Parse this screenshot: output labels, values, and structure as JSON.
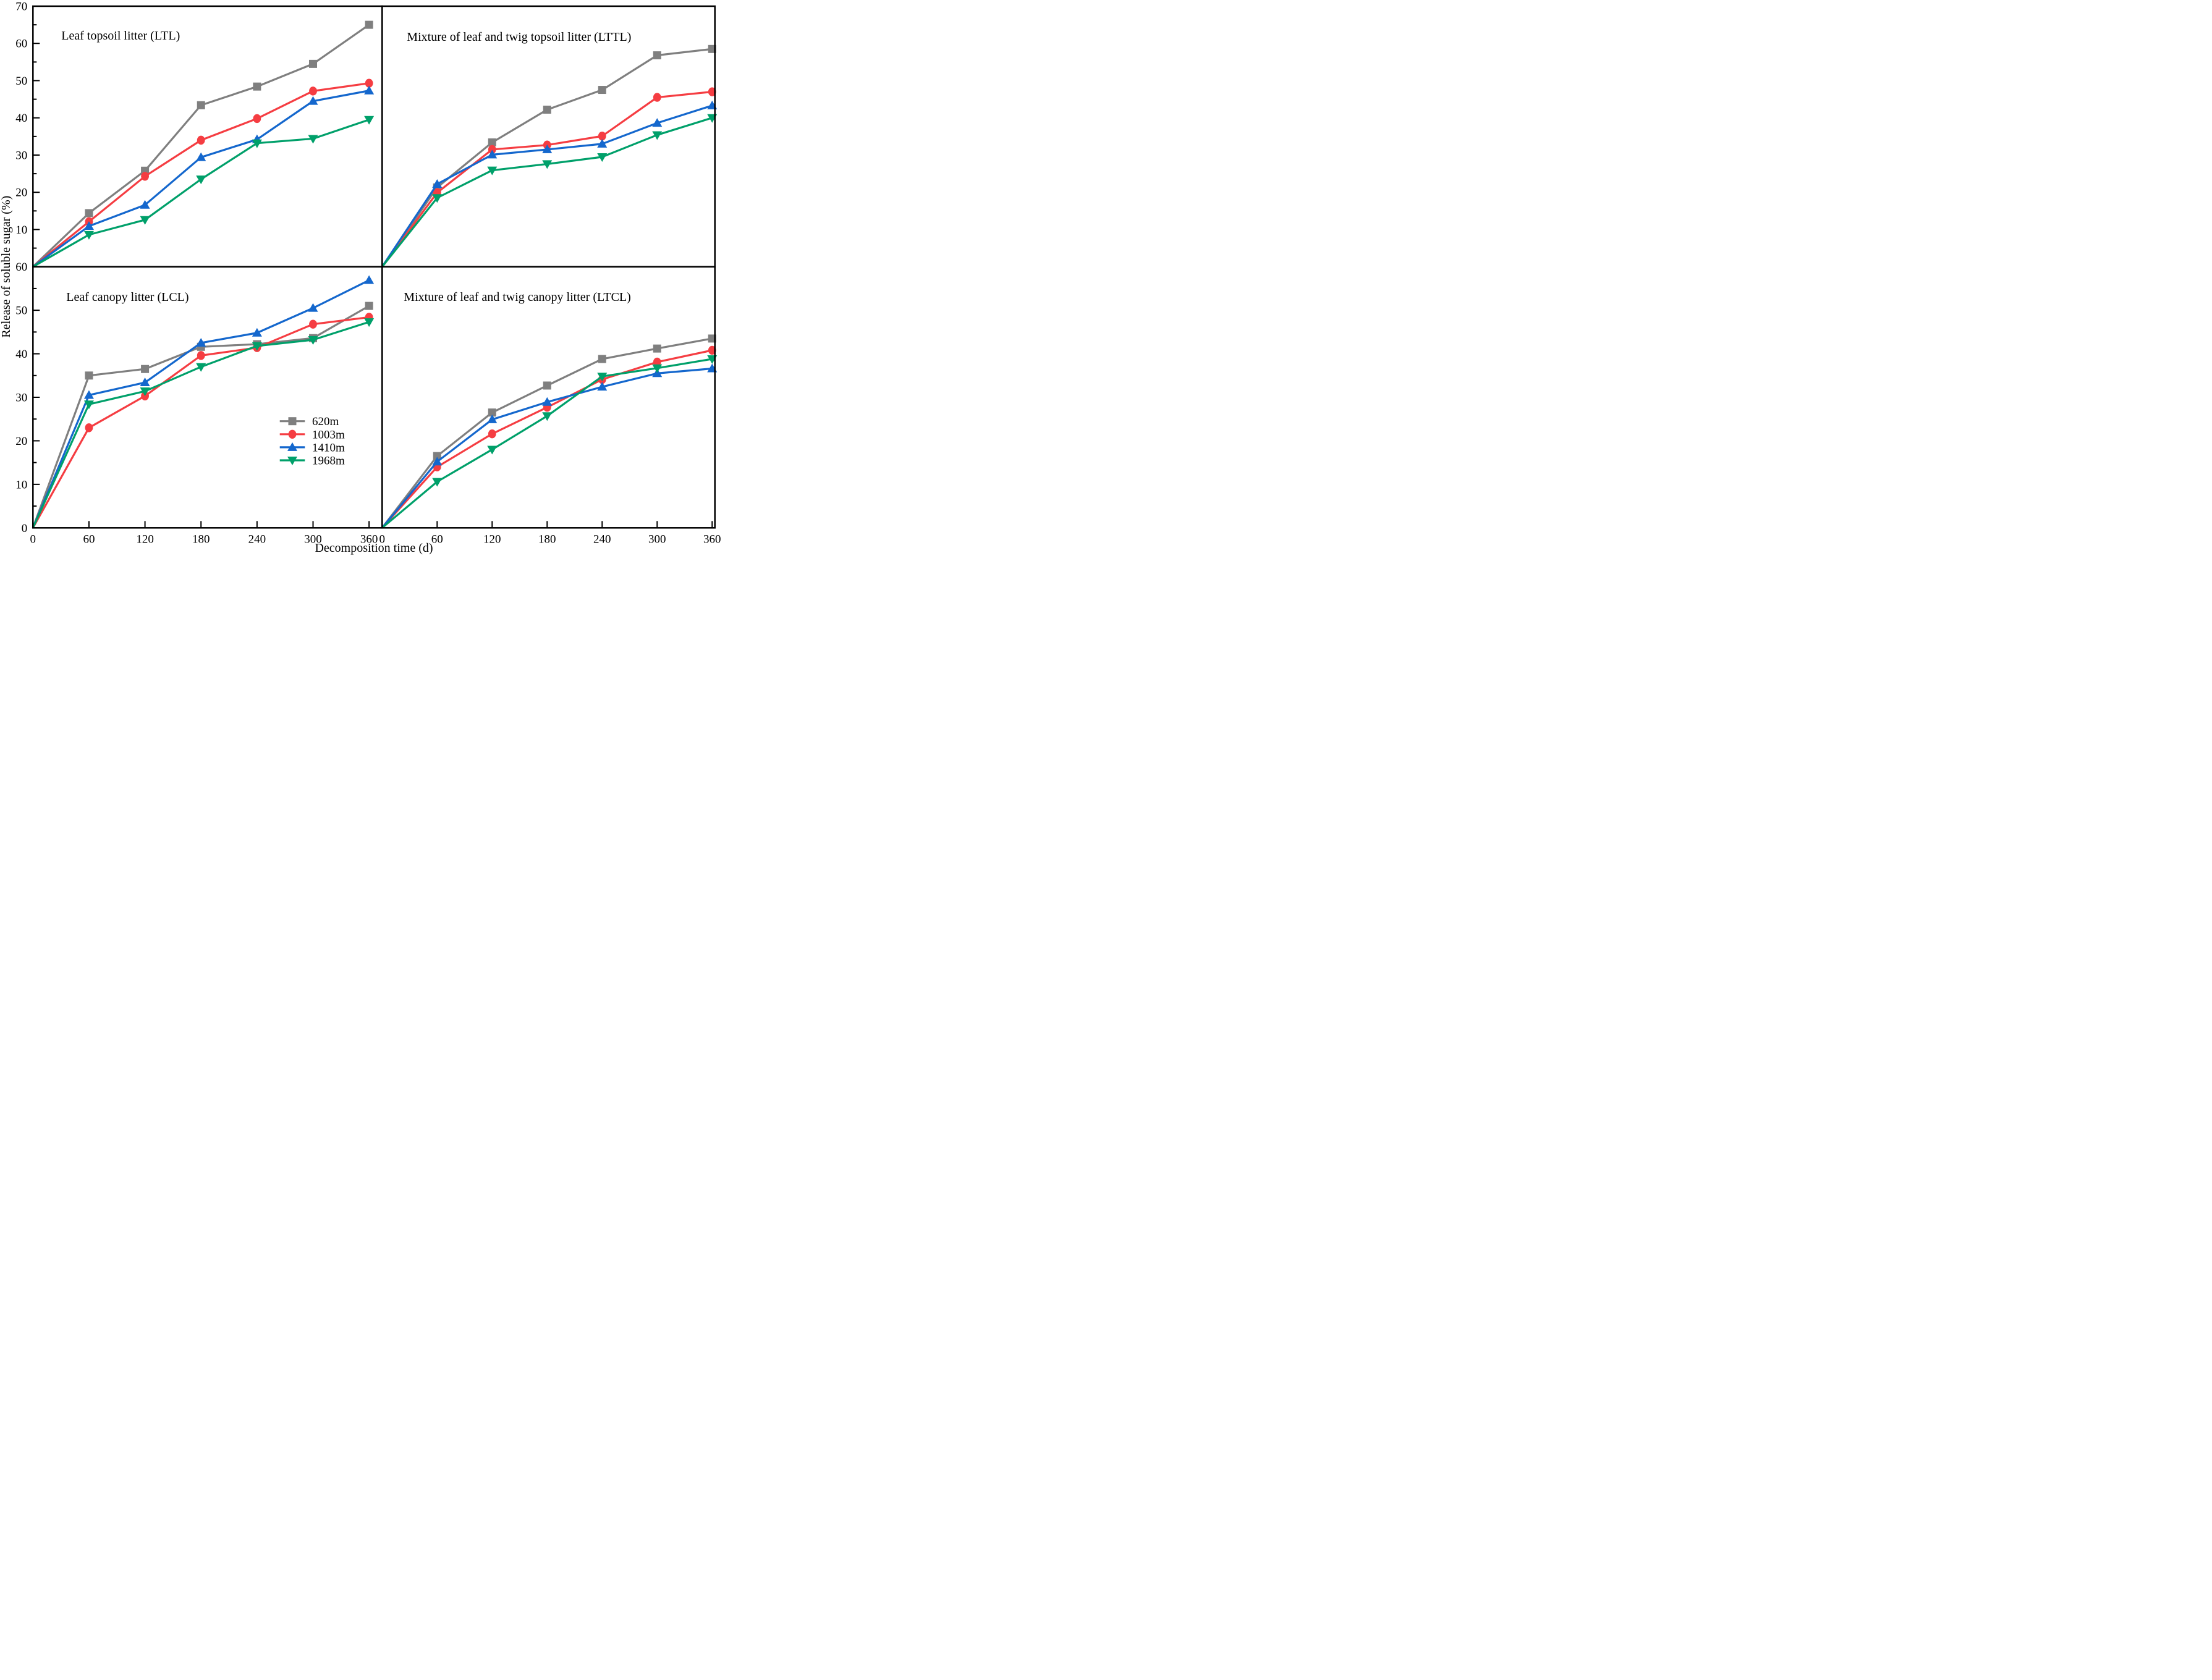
{
  "axes": {
    "x_title": "Decomposition time (d)",
    "y_title": "Release of soluble sugar (%)",
    "x_ticks": [
      0,
      60,
      120,
      180,
      240,
      300,
      360
    ],
    "top_y_ticks": [
      10,
      20,
      30,
      40,
      50,
      60,
      70
    ],
    "bottom_y_ticks": [
      0,
      10,
      20,
      30,
      40,
      50,
      60
    ]
  },
  "legend": {
    "position": "inside bottom-left panel, center-right",
    "items": [
      {
        "label": "620m",
        "marker": "square",
        "color": "#7f7f7f"
      },
      {
        "label": "1003m",
        "marker": "circle",
        "color": "#f53d42"
      },
      {
        "label": "1410m",
        "marker": "triangle-up",
        "color": "#1467cd"
      },
      {
        "label": "1968m",
        "marker": "triangle-down",
        "color": "#00a06a"
      }
    ]
  },
  "chart_data": [
    {
      "type": "line",
      "panel": "top-left",
      "title": "Leaf topsoil litter (LTL)",
      "x": [
        0,
        60,
        120,
        180,
        240,
        300,
        360
      ],
      "xlabel": "Decomposition time (d)",
      "ylabel": "Release of soluble sugar (%)",
      "ylim": [
        0,
        70
      ],
      "grid": false,
      "series": [
        {
          "name": "620m",
          "marker": "square",
          "color": "#7f7f7f",
          "values": [
            0,
            14.4,
            25.8,
            43.4,
            48.4,
            54.5,
            65.0
          ]
        },
        {
          "name": "1003m",
          "marker": "circle",
          "color": "#f53d42",
          "values": [
            0,
            12.1,
            24.3,
            34.0,
            39.8,
            47.2,
            49.3
          ]
        },
        {
          "name": "1410m",
          "marker": "triangle-up",
          "color": "#1467cd",
          "values": [
            0,
            10.9,
            16.6,
            29.4,
            34.2,
            44.5,
            47.3
          ]
        },
        {
          "name": "1968m",
          "marker": "triangle-down",
          "color": "#00a06a",
          "values": [
            0,
            8.6,
            12.6,
            23.5,
            33.2,
            34.4,
            39.5
          ]
        }
      ]
    },
    {
      "type": "line",
      "panel": "top-right",
      "title": "Mixture of leaf and twig topsoil litter (LTTL)",
      "x": [
        0,
        60,
        120,
        180,
        240,
        300,
        360
      ],
      "xlabel": "Decomposition time (d)",
      "ylabel": "Release of soluble sugar (%)",
      "ylim": [
        0,
        70
      ],
      "grid": false,
      "series": [
        {
          "name": "620m",
          "marker": "square",
          "color": "#7f7f7f",
          "values": [
            0,
            21.3,
            33.4,
            42.2,
            47.5,
            56.8,
            58.5
          ]
        },
        {
          "name": "1003m",
          "marker": "circle",
          "color": "#f53d42",
          "values": [
            0,
            19.9,
            31.5,
            32.7,
            35.1,
            45.5,
            47.0
          ]
        },
        {
          "name": "1410m",
          "marker": "triangle-up",
          "color": "#1467cd",
          "values": [
            0,
            22.2,
            30.1,
            31.5,
            33.0,
            38.6,
            43.3
          ]
        },
        {
          "name": "1968m",
          "marker": "triangle-down",
          "color": "#00a06a",
          "values": [
            0,
            18.5,
            25.9,
            27.6,
            29.5,
            35.4,
            40.0
          ]
        }
      ]
    },
    {
      "type": "line",
      "panel": "bottom-left",
      "title": "Leaf canopy litter (LCL)",
      "x": [
        0,
        60,
        120,
        180,
        240,
        300,
        360
      ],
      "xlabel": "Decomposition time (d)",
      "ylabel": "Release of soluble sugar (%)",
      "ylim": [
        0,
        60
      ],
      "grid": false,
      "series": [
        {
          "name": "620m",
          "marker": "square",
          "color": "#7f7f7f",
          "values": [
            0,
            35.0,
            36.5,
            41.6,
            42.2,
            43.6,
            51.0
          ]
        },
        {
          "name": "1003m",
          "marker": "circle",
          "color": "#f53d42",
          "values": [
            0,
            23.0,
            30.3,
            39.6,
            41.4,
            46.8,
            48.4
          ]
        },
        {
          "name": "1410m",
          "marker": "triangle-up",
          "color": "#1467cd",
          "values": [
            0,
            30.5,
            33.4,
            42.5,
            44.8,
            50.5,
            56.9
          ]
        },
        {
          "name": "1968m",
          "marker": "triangle-down",
          "color": "#00a06a",
          "values": [
            0,
            28.4,
            31.4,
            37.0,
            41.8,
            43.2,
            47.3
          ]
        }
      ]
    },
    {
      "type": "line",
      "panel": "bottom-right",
      "title": "Mixture of leaf and twig canopy litter (LTCL)",
      "x": [
        0,
        60,
        120,
        180,
        240,
        300,
        360
      ],
      "xlabel": "Decomposition time (d)",
      "ylabel": "Release of soluble sugar (%)",
      "ylim": [
        0,
        60
      ],
      "grid": false,
      "series": [
        {
          "name": "620m",
          "marker": "square",
          "color": "#7f7f7f",
          "values": [
            0,
            16.5,
            26.5,
            32.7,
            38.8,
            41.2,
            43.5
          ]
        },
        {
          "name": "1003m",
          "marker": "circle",
          "color": "#f53d42",
          "values": [
            0,
            14.0,
            21.6,
            27.7,
            34.1,
            38.1,
            40.8
          ]
        },
        {
          "name": "1410m",
          "marker": "triangle-up",
          "color": "#1467cd",
          "values": [
            0,
            15.2,
            24.9,
            28.9,
            32.4,
            35.5,
            36.6
          ]
        },
        {
          "name": "1968m",
          "marker": "triangle-down",
          "color": "#00a06a",
          "values": [
            0,
            10.6,
            18.0,
            25.7,
            34.8,
            36.7,
            38.8
          ]
        }
      ]
    }
  ]
}
